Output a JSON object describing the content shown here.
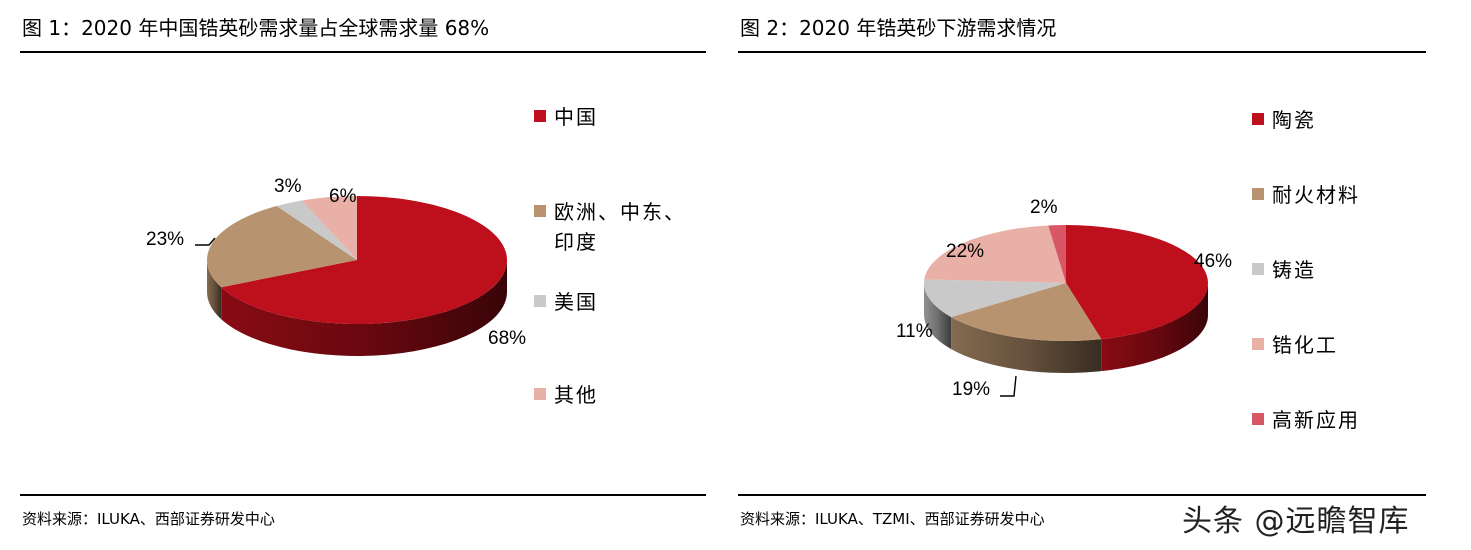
{
  "chart_data": [
    {
      "type": "pie",
      "title": "图 1：2020 年中国锆英砂需求量占全球需求量 68%",
      "categories": [
        "中国",
        "欧洲、中东、印度",
        "美国",
        "其他"
      ],
      "values": [
        68,
        23,
        3,
        6
      ],
      "data_labels": [
        "68%",
        "23%",
        "3%",
        "6%"
      ],
      "colors": [
        "#be0f1c",
        "#b7946f",
        "#c9c9c9",
        "#e9b0a7"
      ],
      "legend_position": "right",
      "source": "资料来源：ILUKA、西部证券研发中心"
    },
    {
      "type": "pie",
      "title": "图 2：2020 年锆英砂下游需求情况",
      "categories": [
        "陶瓷",
        "耐火材料",
        "铸造",
        "锆化工",
        "高新应用"
      ],
      "values": [
        46,
        19,
        11,
        22,
        2
      ],
      "data_labels": [
        "46%",
        "19%",
        "11%",
        "22%",
        "2%"
      ],
      "colors": [
        "#be0f1c",
        "#b7946f",
        "#c9c9c9",
        "#e9b0a7",
        "#d95764"
      ],
      "legend_position": "right",
      "source": "资料来源：ILUKA、TZMI、西部证券研发中心"
    }
  ],
  "watermark": "头条 @远瞻智库"
}
